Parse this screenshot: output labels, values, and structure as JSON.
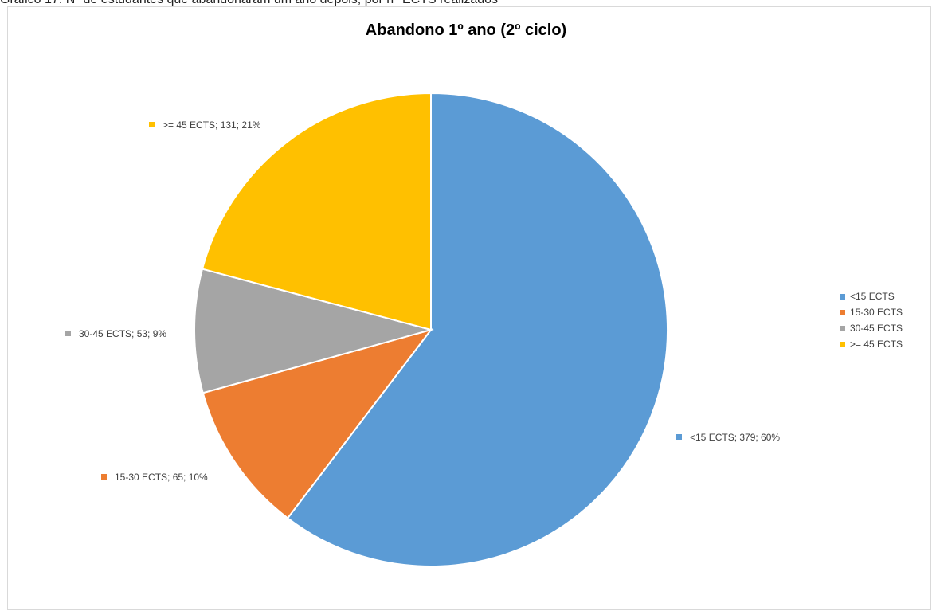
{
  "caption": "Gráfico 17: Nº de estudantes que abandonaram um ano depois, por n° ECTS realizados",
  "chart_data": {
    "type": "pie",
    "title": "Abandono 1º ano  (2º ciclo)",
    "series": [
      {
        "values": [
          379,
          65,
          53,
          131
        ]
      }
    ],
    "categories": [
      "<15 ECTS",
      "15-30 ECTS",
      "30-45 ECTS",
      ">= 45 ECTS"
    ],
    "percent_labels": [
      "60%",
      "10%",
      "9%",
      "21%"
    ],
    "data_labels": [
      "<15 ECTS; 379; 60%",
      "15-30 ECTS; 65; 10%",
      "30-45 ECTS; 53; 9%",
      ">= 45 ECTS; 131; 21%"
    ],
    "colors": [
      "#5B9BD5",
      "#ED7D31",
      "#A5A5A5",
      "#FFC000"
    ],
    "legend_position": "right",
    "start_angle": "12 o'clock",
    "direction": "clockwise"
  }
}
